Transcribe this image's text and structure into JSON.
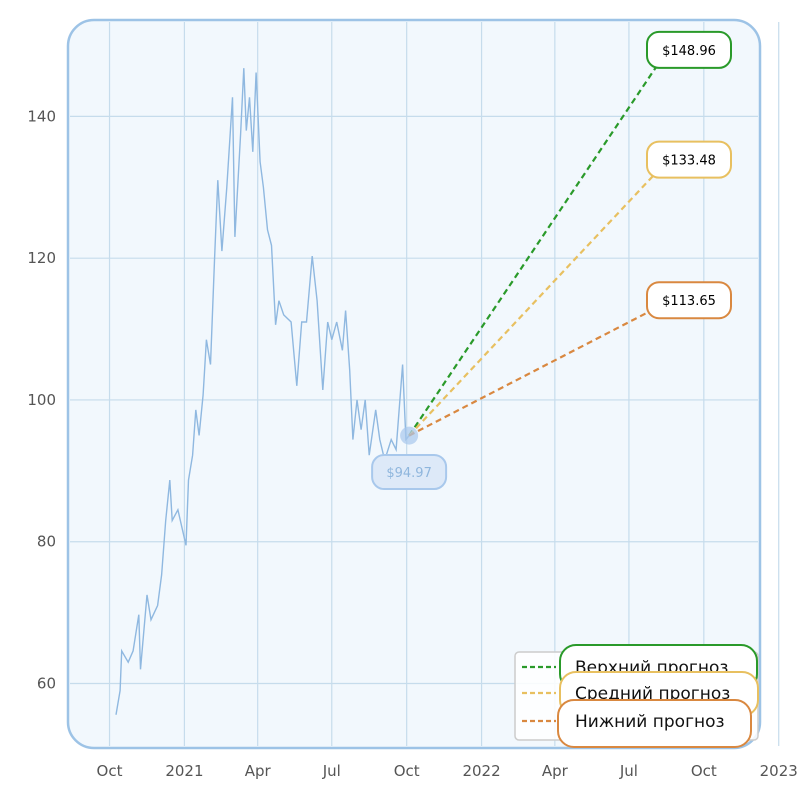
{
  "chart_data": {
    "type": "line",
    "title": "",
    "xlabel": "",
    "ylabel": "",
    "xlim": [
      "2020-08-11",
      "2022-12-09"
    ],
    "ylim": [
      50.9,
      153.6
    ],
    "grid": true,
    "legend_position": "bottom-right",
    "x_ticks": [
      {
        "date": "2020-10-01",
        "label": "Oct"
      },
      {
        "date": "2021-01-01",
        "label": "2021"
      },
      {
        "date": "2021-04-01",
        "label": "Apr"
      },
      {
        "date": "2021-07-01",
        "label": "Jul"
      },
      {
        "date": "2021-10-01",
        "label": "Oct"
      },
      {
        "date": "2022-01-01",
        "label": "2022"
      },
      {
        "date": "2022-04-01",
        "label": "Apr"
      },
      {
        "date": "2022-07-01",
        "label": "Jul"
      },
      {
        "date": "2022-10-01",
        "label": "Oct"
      },
      {
        "date": "2023-01-01",
        "label": "2023"
      }
    ],
    "y_ticks": [
      60,
      80,
      100,
      120,
      140
    ],
    "history": {
      "color": "#8fb8e0",
      "x": [
        "2020-10-09",
        "2020-10-14",
        "2020-10-16",
        "2020-10-24",
        "2020-10-30",
        "2020-11-06",
        "2020-11-08",
        "2020-11-16",
        "2020-11-21",
        "2020-11-29",
        "2020-12-04",
        "2020-12-09",
        "2020-12-14",
        "2020-12-17",
        "2020-12-24",
        "2021-01-03",
        "2021-01-06",
        "2021-01-11",
        "2021-01-15",
        "2021-01-19",
        "2021-01-24",
        "2021-01-28",
        "2021-02-02",
        "2021-02-07",
        "2021-02-11",
        "2021-02-16",
        "2021-02-22",
        "2021-03-01",
        "2021-03-04",
        "2021-03-11",
        "2021-03-15",
        "2021-03-18",
        "2021-03-22",
        "2021-03-26",
        "2021-03-30",
        "2021-04-04",
        "2021-04-08",
        "2021-04-13",
        "2021-04-18",
        "2021-04-23",
        "2021-04-27",
        "2021-05-03",
        "2021-05-12",
        "2021-05-19",
        "2021-05-25",
        "2021-05-31",
        "2021-06-07",
        "2021-06-13",
        "2021-06-20",
        "2021-06-26",
        "2021-07-01",
        "2021-07-07",
        "2021-07-14",
        "2021-07-18",
        "2021-07-23",
        "2021-07-27",
        "2021-08-01",
        "2021-08-06",
        "2021-08-11",
        "2021-08-16",
        "2021-08-24",
        "2021-08-29",
        "2021-09-04",
        "2021-09-12",
        "2021-09-18",
        "2021-09-26",
        "2021-09-30",
        "2021-10-04"
      ],
      "y": [
        55.6,
        59,
        64.6,
        63,
        64.6,
        69.7,
        62,
        72.5,
        69,
        71,
        75.3,
        83,
        88.7,
        83,
        84.5,
        79.5,
        88.7,
        92.2,
        98.6,
        95,
        100.7,
        108.5,
        105,
        119.7,
        131,
        121,
        130,
        142.7,
        123,
        137.5,
        146.8,
        138,
        142.7,
        135,
        146.2,
        133.6,
        130,
        124,
        121.8,
        110.6,
        114,
        112,
        111,
        102,
        111,
        111,
        120.3,
        114,
        101.4,
        111,
        108.5,
        111,
        107,
        112.6,
        104.2,
        94.4,
        100,
        95.8,
        100,
        92.2,
        98.6,
        94.4,
        91.5,
        94.4,
        93,
        105,
        94.4,
        94.97
      ]
    },
    "last_point": {
      "date": "2021-10-04",
      "value": 94.97,
      "label": "$94.97"
    },
    "series": [
      {
        "name": "Верхний прогноз",
        "color": "#2a9a2a",
        "x": [
          "2021-10-04",
          "2022-08-15"
        ],
        "y": [
          94.97,
          148.96
        ],
        "label": "$148.96"
      },
      {
        "name": "Средний прогноз",
        "color": "#e8c060",
        "x": [
          "2021-10-04",
          "2022-08-15"
        ],
        "y": [
          94.97,
          133.48
        ],
        "label": "$133.48"
      },
      {
        "name": "Нижний прогноз",
        "color": "#d98840",
        "x": [
          "2021-10-04",
          "2022-08-15"
        ],
        "y": [
          94.97,
          113.65
        ],
        "label": "$113.65"
      }
    ]
  }
}
